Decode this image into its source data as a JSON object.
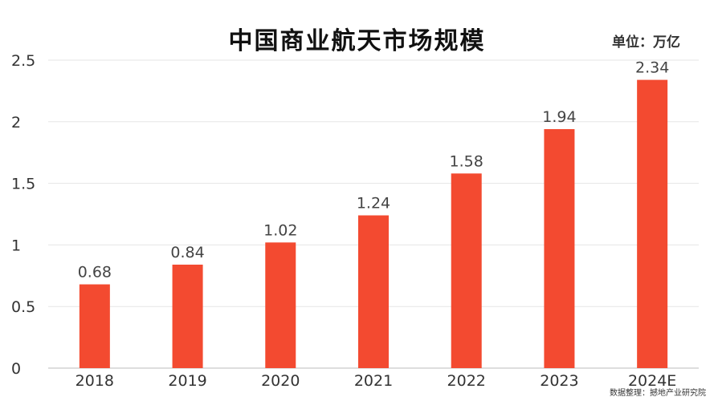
{
  "title": "中国商业航天市场规模",
  "unit": "单位：万亿",
  "source": "数据整理：撼地产业研究院",
  "chart_data": {
    "type": "bar",
    "title": "中国商业航天市场规模",
    "categories": [
      "2018",
      "2019",
      "2020",
      "2021",
      "2022",
      "2023",
      "2024E"
    ],
    "values": [
      0.68,
      0.84,
      1.02,
      1.24,
      1.58,
      1.94,
      2.34
    ],
    "value_labels": [
      "0.68",
      "0.84",
      "1.02",
      "1.24",
      "1.58",
      "1.94",
      "2.34"
    ],
    "ylim": [
      0,
      2.5
    ],
    "yticks": [
      "0",
      "0.5",
      "1",
      "1.5",
      "2",
      "2.5"
    ],
    "ytick_values": [
      0,
      0.5,
      1,
      1.5,
      2,
      2.5
    ],
    "grid": true,
    "bar_color": "#f34a30"
  }
}
